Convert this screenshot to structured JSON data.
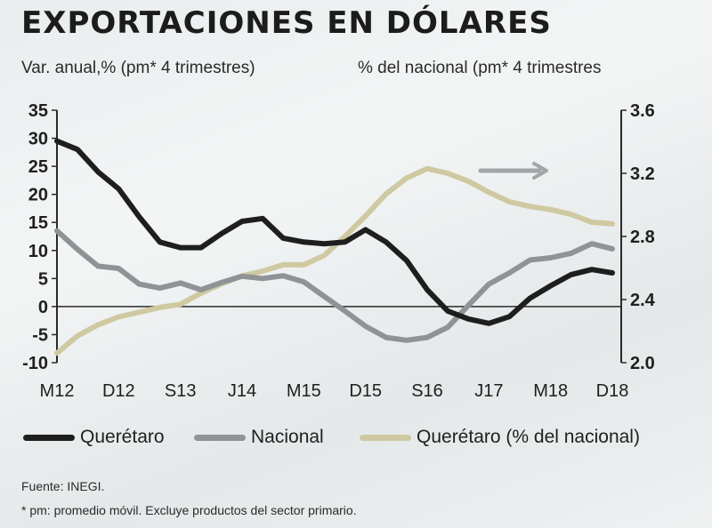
{
  "title": "EXPORTACIONES EN DÓLARES",
  "subtitle_left": "Var. anual,% (pm* 4 trimestres)",
  "subtitle_right": "% del nacional (pm* 4 trimestres",
  "source": "Fuente: INEGI.",
  "footnote": "* pm: promedio móvil. Excluye productos del sector primario.",
  "colors": {
    "queretaro": "#1e1e1e",
    "nacional": "#8f9395",
    "share": "#cfc9a2",
    "arrow": "#a2a6a8"
  },
  "chart_data": {
    "type": "line",
    "x": [
      "M12",
      "J12",
      "S12",
      "D12",
      "M13",
      "J13",
      "S13",
      "D13",
      "M14",
      "J14",
      "S14",
      "D14",
      "M15",
      "J15",
      "S15",
      "D15",
      "M16",
      "J16",
      "S16",
      "D16",
      "M17",
      "J17",
      "S17",
      "D17",
      "M18",
      "J18",
      "S18",
      "D18"
    ],
    "x_tick_labels": [
      "M12",
      "D12",
      "S13",
      "J14",
      "M15",
      "D15",
      "S16",
      "J17",
      "M18",
      "D18"
    ],
    "left_axis": {
      "ticks": [
        "35",
        "30",
        "25",
        "20",
        "15",
        "10",
        "5",
        "0",
        "-5",
        "-10"
      ],
      "ylim": [
        -10,
        35
      ]
    },
    "right_axis": {
      "ticks": [
        "3.6",
        "3.2",
        "2.8",
        "2.4",
        "2.0"
      ],
      "ylim": [
        2.0,
        3.6
      ]
    },
    "grid": false,
    "legend_position": "bottom",
    "series": [
      {
        "name": "Querétaro",
        "axis": "left",
        "values": [
          29.5,
          28,
          24,
          21,
          16,
          11.5,
          10.5,
          10.5,
          13,
          15.2,
          15.7,
          12.2,
          11.5,
          11.2,
          11.5,
          13.7,
          11.5,
          8.2,
          3,
          -0.8,
          -2.2,
          -3,
          -1.8,
          1.5,
          3.7,
          5.7,
          6.6,
          6
        ]
      },
      {
        "name": "Nacional",
        "axis": "left",
        "values": [
          13.5,
          10.2,
          7.2,
          6.8,
          4,
          3.3,
          4.2,
          3,
          4.3,
          5.4,
          5,
          5.5,
          4.4,
          1.8,
          -0.8,
          -3.5,
          -5.5,
          -6,
          -5.5,
          -3.7,
          0.2,
          4,
          6,
          8.3,
          8.7,
          9.5,
          11.2,
          10.3
        ]
      },
      {
        "name": "Querétaro (% del nacional)",
        "axis": "right",
        "values": [
          2.06,
          2.17,
          2.24,
          2.29,
          2.32,
          2.35,
          2.37,
          2.44,
          2.5,
          2.55,
          2.58,
          2.62,
          2.62,
          2.68,
          2.8,
          2.93,
          3.07,
          3.17,
          3.23,
          3.2,
          3.15,
          3.08,
          3.02,
          2.99,
          2.97,
          2.94,
          2.89,
          2.88
        ]
      }
    ]
  }
}
